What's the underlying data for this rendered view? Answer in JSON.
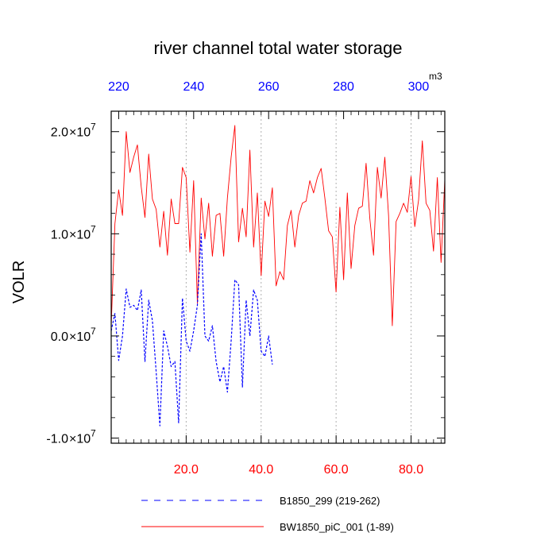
{
  "chart_data": {
    "type": "line",
    "title": "river channel total water storage",
    "ylabel": "VOLR",
    "xlabel": "",
    "xlim": [
      0,
      89
    ],
    "ylim": [
      -10500000.0,
      22000000.0
    ],
    "x_ticks": [
      20,
      40,
      60,
      80
    ],
    "x_tick_labels": [
      "20.0",
      "40.0",
      "60.0",
      "80.0"
    ],
    "top_axis": {
      "ticks": [
        220,
        240,
        260,
        280,
        300
      ],
      "tick_labels": [
        "220",
        "240",
        "260",
        "280",
        "300"
      ],
      "offset": 218,
      "unit": "m3"
    },
    "y_ticks": [
      {
        "value": 20000000.0,
        "mant": "2.0",
        "exp": "7"
      },
      {
        "value": 10000000.0,
        "mant": "1.0",
        "exp": "7"
      },
      {
        "value": 0.0,
        "mant": "0.0",
        "exp": "7"
      },
      {
        "value": -10000000.0,
        "mant": "-1.0",
        "exp": "7"
      }
    ],
    "y_tick_times": "×10",
    "grid": "vertical-dotted",
    "series": [
      {
        "name": "BW1850_piC_001 (1-89)",
        "color": "#ff0000",
        "style": "solid",
        "x": [
          0,
          1,
          2,
          3,
          4,
          5,
          6,
          7,
          8,
          9,
          10,
          11,
          12,
          13,
          14,
          15,
          16,
          17,
          18,
          19,
          20,
          21,
          22,
          23,
          24,
          25,
          26,
          27,
          28,
          29,
          30,
          31,
          32,
          33,
          34,
          35,
          36,
          37,
          38,
          39,
          40,
          41,
          42,
          43,
          44,
          45,
          46,
          47,
          48,
          49,
          50,
          51,
          52,
          53,
          54,
          55,
          56,
          57,
          58,
          59,
          60,
          61,
          62,
          63,
          64,
          65,
          66,
          67,
          68,
          69,
          70,
          71,
          72,
          73,
          74,
          75,
          76,
          77,
          78,
          79,
          80,
          81,
          82,
          83,
          84,
          85,
          86,
          87,
          88,
          89
        ],
        "values": [
          1000000.0,
          11000000.0,
          14300000.0,
          11800000.0,
          20000000.0,
          16000000.0,
          17500000.0,
          18700000.0,
          14600000.0,
          11600000.0,
          17800000.0,
          13400000.0,
          12400000.0,
          8700000.0,
          12200000.0,
          7900000.0,
          13400000.0,
          11000000.0,
          11000000.0,
          16500000.0,
          15500000.0,
          8200000.0,
          15200000.0,
          3200000.0,
          13500000.0,
          9500000.0,
          13000000.0,
          7800000.0,
          11800000.0,
          12000000.0,
          7800000.0,
          13500000.0,
          17500000.0,
          20600000.0,
          9200000.0,
          12500000.0,
          9700000.0,
          18200000.0,
          8700000.0,
          14000000.0,
          5900000.0,
          13200000.0,
          11700000.0,
          14500000.0,
          4900000.0,
          6300000.0,
          5500000.0,
          10800000.0,
          12300000.0,
          8700000.0,
          11800000.0,
          13000000.0,
          13200000.0,
          15200000.0,
          14000000.0,
          15500000.0,
          16400000.0,
          13500000.0,
          10300000.0,
          9700000.0,
          4300000.0,
          12600000.0,
          5500000.0,
          14000000.0,
          6600000.0,
          10800000.0,
          12500000.0,
          12700000.0,
          16900000.0,
          11500000.0,
          7900000.0,
          16500000.0,
          13500000.0,
          17500000.0,
          11800000.0,
          1000000.0,
          11200000.0,
          12000000.0,
          13000000.0,
          12100000.0,
          15600000.0,
          10700000.0,
          13300000.0,
          19100000.0,
          13000000.0,
          12300000.0,
          8300000.0,
          15500000.0,
          7200000.0,
          15300000.0
        ]
      },
      {
        "name": "B1850_299 (219-262)",
        "color": "#0000ff",
        "style": "dashed",
        "x": [
          0,
          1,
          2,
          3,
          4,
          5,
          6,
          7,
          8,
          9,
          10,
          11,
          12,
          13,
          14,
          15,
          16,
          17,
          18,
          19,
          20,
          21,
          22,
          23,
          24,
          25,
          26,
          27,
          28,
          29,
          30,
          31,
          32,
          33,
          34,
          35,
          36,
          37,
          38,
          39,
          40,
          41,
          42,
          43
        ],
        "values": [
          500000.0,
          2200000.0,
          -2400000.0,
          0.0,
          4600000.0,
          2800000.0,
          3000000.0,
          2500000.0,
          4500000.0,
          -2500000.0,
          3500000.0,
          1500000.0,
          -3500000.0,
          -8800000.0,
          500000.0,
          -1000000.0,
          -3000000.0,
          -2500000.0,
          -8500000.0,
          3700000.0,
          -500000.0,
          -1500000.0,
          500000.0,
          3000000.0,
          10000000.0,
          0.0,
          -500000.0,
          1000000.0,
          -2500000.0,
          -4500000.0,
          -3000000.0,
          -5500000.0,
          -500000.0,
          5500000.0,
          5000000.0,
          -5000000.0,
          3500000.0,
          0.0,
          4500000.0,
          3500000.0,
          -1500000.0,
          -2000000.0,
          0.0,
          -2800000.0
        ]
      }
    ],
    "legend": {
      "position": "bottom",
      "entries": [
        "B1850_299 (219-262)",
        "BW1850_piC_001 (1-89)"
      ]
    }
  }
}
